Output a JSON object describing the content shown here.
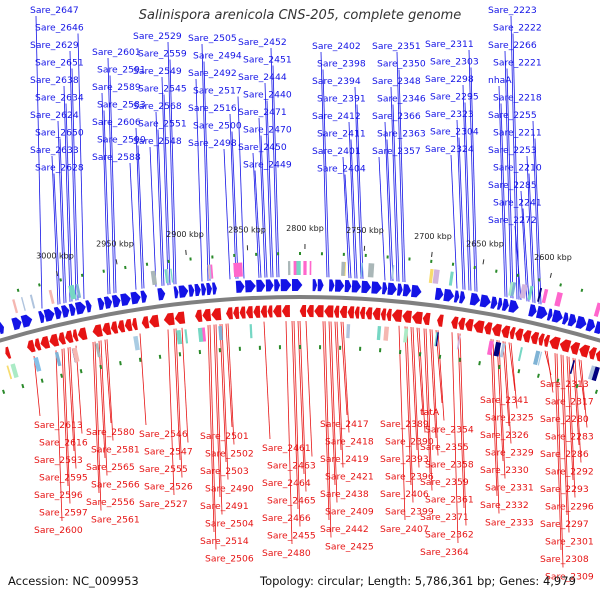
{
  "title": "Salinispora arenicola CNS-205, complete genome",
  "footer": {
    "accession": "Accession: NC_009953",
    "summary": "Topology: circular; Length: 5,786,361 bp; Genes: 4,979"
  },
  "colors": {
    "forward_strand": "#1414e6",
    "reverse_strand": "#e61414",
    "backbone": "#808080",
    "tick": "#2a8a2a"
  },
  "chart_data": {
    "type": "circular genome map (segment)",
    "genome_length_bp": 5786361,
    "axis_ticks_kbp": [
      "3000 kbp",
      "2950 kbp",
      "2900 kbp",
      "2850 kbp",
      "2800 kbp",
      "2750 kbp",
      "2700 kbp",
      "2650 kbp",
      "2600 kbp"
    ],
    "forward_labels": [
      "Sare_2647",
      "Sare_2646",
      "Sare_2629",
      "Sare_2651",
      "Sare_2638",
      "Sare_2634",
      "Sare_2624",
      "Sare_2650",
      "Sare_2633",
      "Sare_2628",
      "Sare_2601",
      "Sare_2591",
      "Sare_2589",
      "Sare_2583",
      "Sare_2606",
      "Sare_2590",
      "Sare_2588",
      "Sare_2529",
      "Sare_2559",
      "Sare_2549",
      "Sare_2545",
      "Sare_2568",
      "Sare_2551",
      "Sare_2548",
      "Sare_2505",
      "Sare_2494",
      "Sare_2492",
      "Sare_2517",
      "Sare_2516",
      "Sare_2500",
      "Sare_2498",
      "Sare_2452",
      "Sare_2451",
      "Sare_2444",
      "Sare_2440",
      "Sare_2471",
      "Sare_2470",
      "Sare_2450",
      "Sare_2449",
      "Sare_2402",
      "Sare_2398",
      "Sare_2394",
      "Sare_2391",
      "Sare_2412",
      "Sare_2411",
      "Sare_2401",
      "Sare_2404",
      "Sare_2351",
      "Sare_2350",
      "Sare_2348",
      "Sare_2346",
      "Sare_2366",
      "Sare_2363",
      "Sare_2357",
      "Sare_2311",
      "Sare_2303",
      "Sare_2298",
      "Sare_2295",
      "Sare_2323",
      "Sare_2304",
      "Sare_2324",
      "Sare_2223",
      "Sare_2222",
      "Sare_2266",
      "Sare_2221",
      "nhaA",
      "Sare_2218",
      "Sare_2255",
      "Sare_2211",
      "Sare_2253",
      "Sare_2210",
      "Sare_2285",
      "Sare_2241",
      "Sare_2272"
    ],
    "reverse_labels": [
      "Sare_2613",
      "Sare_2616",
      "Sare_2593",
      "Sare_2595",
      "Sare_2596",
      "Sare_2597",
      "Sare_2600",
      "Sare_2580",
      "Sare_2581",
      "Sare_2565",
      "Sare_2566",
      "Sare_2556",
      "Sare_2561",
      "Sare_2546",
      "Sare_2547",
      "Sare_2555",
      "Sare_2526",
      "Sare_2527",
      "Sare_2501",
      "Sare_2502",
      "Sare_2503",
      "Sare_2490",
      "Sare_2491",
      "Sare_2504",
      "Sare_2514",
      "Sare_2506",
      "Sare_2461",
      "Sare_2463",
      "Sare_2464",
      "Sare_2465",
      "Sare_2466",
      "Sare_2455",
      "Sare_2480",
      "Sare_2417",
      "Sare_2418",
      "Sare_2419",
      "Sare_2421",
      "Sare_2438",
      "Sare_2409",
      "Sare_2442",
      "Sare_2425",
      "Sare_2389",
      "Sare_2390",
      "Sare_2393",
      "Sare_2396",
      "Sare_2406",
      "Sare_2399",
      "Sare_2407",
      "tatA",
      "Sare_2354",
      "Sare_2355",
      "Sare_2358",
      "Sare_2359",
      "Sare_2361",
      "Sare_2371",
      "Sare_2362",
      "Sare_2364",
      "Sare_2341",
      "Sare_2325",
      "Sare_2326",
      "Sare_2329",
      "Sare_2330",
      "Sare_2331",
      "Sare_2332",
      "Sare_2333",
      "Sare_2313",
      "Sare_2317",
      "Sare_2280",
      "Sare_2283",
      "Sare_2286",
      "Sare_2292",
      "Sare_2293",
      "Sare_2296",
      "Sare_2297",
      "Sare_2301",
      "Sare_2308",
      "Sare_2309"
    ]
  }
}
